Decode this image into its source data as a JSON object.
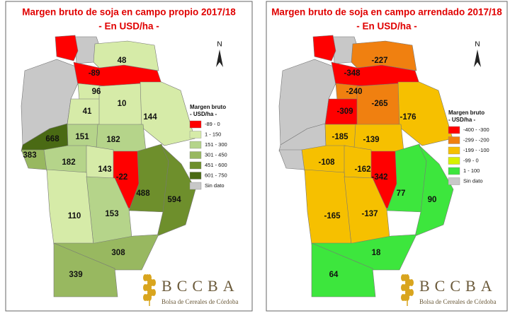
{
  "maps": [
    {
      "title": "Margen bruto de soja en campo propio 2017/18",
      "subtitle": "- En USD/ha -",
      "north": "N",
      "legend": {
        "title": "Margen bruto",
        "subtitle": "- USD/ha -",
        "items": [
          {
            "label": "-89 - 0",
            "color": "#ff0000"
          },
          {
            "label": "1 - 150",
            "color": "#d6eba8"
          },
          {
            "label": "151 - 300",
            "color": "#b5d48a"
          },
          {
            "label": "301 - 450",
            "color": "#98b860"
          },
          {
            "label": "451 - 600",
            "color": "#6e8f2c"
          },
          {
            "label": "601 - 750",
            "color": "#4a6a14"
          },
          {
            "label": "Sin dato",
            "color": "#c8c8c8"
          }
        ]
      },
      "regions": [
        {
          "color": "#c8c8c8"
        },
        {
          "color": "#c8c8c8"
        },
        {
          "value": -89,
          "color": "#ff0000"
        },
        {
          "value": 48,
          "color": "#d6eba8"
        },
        {
          "value": 96,
          "color": "#d6eba8"
        },
        {
          "value": 41,
          "color": "#d6eba8"
        },
        {
          "value": 10,
          "color": "#d6eba8"
        },
        {
          "value": 144,
          "color": "#d6eba8"
        },
        {
          "value": 668,
          "color": "#4a6a14"
        },
        {
          "value": 383,
          "color": "#98b860"
        },
        {
          "value": 151,
          "color": "#b5d48a"
        },
        {
          "value": 182,
          "color": "#b5d48a"
        },
        {
          "value": 182,
          "color": "#b5d48a"
        },
        {
          "value": 143,
          "color": "#d6eba8"
        },
        {
          "value": -22,
          "color": "#ff0000"
        },
        {
          "value": 488,
          "color": "#6e8f2c"
        },
        {
          "value": 594,
          "color": "#6e8f2c"
        },
        {
          "value": 110,
          "color": "#d6eba8"
        },
        {
          "value": 153,
          "color": "#b5d48a"
        },
        {
          "value": 308,
          "color": "#98b860"
        },
        {
          "value": 339,
          "color": "#98b860"
        }
      ]
    },
    {
      "title": "Margen bruto de soja en campo arrendado 2017/18",
      "subtitle": "- En USD/ha -",
      "north": "N",
      "legend": {
        "title": "Margen bruto",
        "subtitle": "- USD/ha -",
        "items": [
          {
            "label": "-400 - -300",
            "color": "#ff0000"
          },
          {
            "label": "-299 - -200",
            "color": "#f08010"
          },
          {
            "label": "-199 - -100",
            "color": "#f6c000"
          },
          {
            "label": "-99 - 0",
            "color": "#d8f000"
          },
          {
            "label": "1 - 100",
            "color": "#3de63d"
          },
          {
            "label": "Sin dato",
            "color": "#c8c8c8"
          }
        ]
      },
      "regions": [
        {
          "color": "#c8c8c8"
        },
        {
          "color": "#c8c8c8"
        },
        {
          "value": -348,
          "color": "#ff0000"
        },
        {
          "value": -227,
          "color": "#f08010"
        },
        {
          "value": -240,
          "color": "#f08010"
        },
        {
          "value": -309,
          "color": "#ff0000"
        },
        {
          "value": -265,
          "color": "#f08010"
        },
        {
          "value": -176,
          "color": "#f6c000"
        },
        {
          "color": "#c8c8c8"
        },
        {
          "color": "#c8c8c8"
        },
        {
          "value": -185,
          "color": "#f6c000"
        },
        {
          "value": -139,
          "color": "#f6c000"
        },
        {
          "value": -108,
          "color": "#f6c000"
        },
        {
          "value": -162,
          "color": "#f6c000"
        },
        {
          "value": -342,
          "color": "#ff0000"
        },
        {
          "value": 77,
          "color": "#3de63d"
        },
        {
          "value": 90,
          "color": "#3de63d"
        },
        {
          "value": -165,
          "color": "#f6c000"
        },
        {
          "value": -137,
          "color": "#f6c000"
        },
        {
          "value": 18,
          "color": "#3de63d"
        },
        {
          "value": 64,
          "color": "#3de63d"
        }
      ]
    }
  ],
  "logo": {
    "name": "BCCBA",
    "tagline": "Bolsa de Cereales de Córdoba"
  }
}
